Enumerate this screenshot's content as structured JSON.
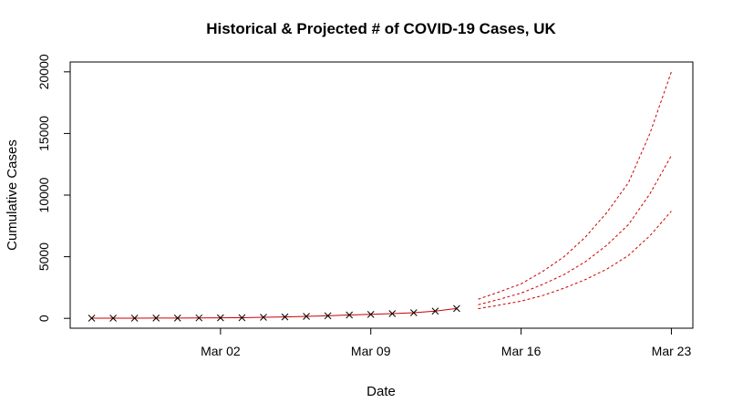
{
  "chart_data": {
    "type": "line",
    "title": "Historical & Projected # of COVID-19 Cases, UK",
    "xlabel": "Date",
    "ylabel": "Cumulative Cases",
    "x_ticks": [
      {
        "date": "2020-03-02",
        "label": "Mar 02"
      },
      {
        "date": "2020-03-09",
        "label": "Mar 09"
      },
      {
        "date": "2020-03-16",
        "label": "Mar 16"
      },
      {
        "date": "2020-03-23",
        "label": "Mar 23"
      }
    ],
    "y_ticks": [
      0,
      5000,
      10000,
      15000,
      20000
    ],
    "xlim": [
      "2020-02-24",
      "2020-03-24"
    ],
    "ylim": [
      -800,
      20800
    ],
    "series": [
      {
        "style": "solid-line-with-x-markers",
        "color": "#cc0000",
        "marker_color": "#000000",
        "points": [
          {
            "x": "2020-02-25",
            "y": 13
          },
          {
            "x": "2020-02-26",
            "y": 13
          },
          {
            "x": "2020-02-27",
            "y": 15
          },
          {
            "x": "2020-02-28",
            "y": 20
          },
          {
            "x": "2020-02-29",
            "y": 23
          },
          {
            "x": "2020-03-01",
            "y": 36
          },
          {
            "x": "2020-03-02",
            "y": 40
          },
          {
            "x": "2020-03-03",
            "y": 51
          },
          {
            "x": "2020-03-04",
            "y": 85
          },
          {
            "x": "2020-03-05",
            "y": 115
          },
          {
            "x": "2020-03-06",
            "y": 163
          },
          {
            "x": "2020-03-07",
            "y": 206
          },
          {
            "x": "2020-03-08",
            "y": 273
          },
          {
            "x": "2020-03-09",
            "y": 321
          },
          {
            "x": "2020-03-10",
            "y": 382
          },
          {
            "x": "2020-03-11",
            "y": 456
          },
          {
            "x": "2020-03-12",
            "y": 590
          },
          {
            "x": "2020-03-13",
            "y": 798
          }
        ]
      },
      {
        "style": "dashed",
        "color": "#cc0000",
        "points": [
          {
            "x": "2020-03-14",
            "y": 1550
          },
          {
            "x": "2020-03-15",
            "y": 2150
          },
          {
            "x": "2020-03-16",
            "y": 2800
          },
          {
            "x": "2020-03-17",
            "y": 3800
          },
          {
            "x": "2020-03-18",
            "y": 5000
          },
          {
            "x": "2020-03-19",
            "y": 6600
          },
          {
            "x": "2020-03-20",
            "y": 8600
          },
          {
            "x": "2020-03-21",
            "y": 11000
          },
          {
            "x": "2020-03-22",
            "y": 15000
          },
          {
            "x": "2020-03-23",
            "y": 20000
          }
        ]
      },
      {
        "style": "dashed",
        "color": "#cc0000",
        "points": [
          {
            "x": "2020-03-14",
            "y": 1100
          },
          {
            "x": "2020-03-15",
            "y": 1550
          },
          {
            "x": "2020-03-16",
            "y": 2050
          },
          {
            "x": "2020-03-17",
            "y": 2750
          },
          {
            "x": "2020-03-18",
            "y": 3550
          },
          {
            "x": "2020-03-19",
            "y": 4600
          },
          {
            "x": "2020-03-20",
            "y": 5950
          },
          {
            "x": "2020-03-21",
            "y": 7600
          },
          {
            "x": "2020-03-22",
            "y": 10100
          },
          {
            "x": "2020-03-23",
            "y": 13200
          }
        ]
      },
      {
        "style": "dashed",
        "color": "#cc0000",
        "points": [
          {
            "x": "2020-03-14",
            "y": 780
          },
          {
            "x": "2020-03-15",
            "y": 1080
          },
          {
            "x": "2020-03-16",
            "y": 1400
          },
          {
            "x": "2020-03-17",
            "y": 1850
          },
          {
            "x": "2020-03-18",
            "y": 2450
          },
          {
            "x": "2020-03-19",
            "y": 3150
          },
          {
            "x": "2020-03-20",
            "y": 4000
          },
          {
            "x": "2020-03-21",
            "y": 5100
          },
          {
            "x": "2020-03-22",
            "y": 6700
          },
          {
            "x": "2020-03-23",
            "y": 8700
          }
        ]
      }
    ],
    "grid": false,
    "legend": "none"
  }
}
